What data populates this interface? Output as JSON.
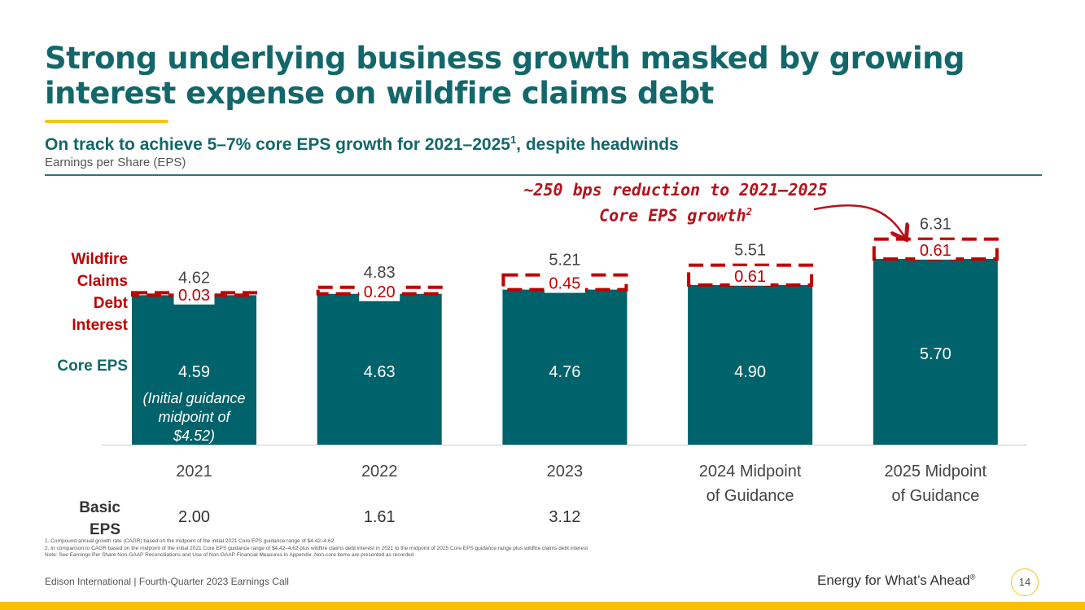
{
  "title": "Strong underlying business growth masked by growing interest expense on wildfire claims debt",
  "subtitle": "On track to achieve 5–7% core EPS growth for 2021–2025",
  "subtitle_sup": "1",
  "subtitle_tail": ", despite headwinds",
  "section_label": "Earnings per Share (EPS)",
  "row_labels": {
    "wildfire": "Wildfire Claims Debt Interest",
    "core": "Core EPS",
    "basic": "Basic EPS"
  },
  "annotation": {
    "text": "~250 bps reduction to 2021–2025 Core EPS growth",
    "sup": "2"
  },
  "chart_data": {
    "type": "bar",
    "stacked": true,
    "categories": [
      "2021",
      "2022",
      "2023",
      "2024 Midpoint of Guidance",
      "2025 Midpoint of Guidance"
    ],
    "series": [
      {
        "name": "Core EPS",
        "values": [
          4.59,
          4.63,
          4.76,
          4.9,
          5.7
        ],
        "labels": [
          "4.59",
          "4.63",
          "4.76",
          "4.90",
          "5.70"
        ],
        "color": "#00626a"
      },
      {
        "name": "Wildfire Claims Debt Interest",
        "values": [
          0.03,
          0.2,
          0.45,
          0.61,
          0.61
        ],
        "labels": [
          "0.03",
          "0.20",
          "0.45",
          "0.61",
          "0.61"
        ],
        "color": "#c00000",
        "style": "dashed-outline"
      }
    ],
    "totals": [
      "4.62",
      "4.83",
      "5.21",
      "5.51",
      "6.31"
    ],
    "basic_eps": [
      "2.00",
      "1.61",
      "3.12",
      "",
      ""
    ],
    "note_2021": "(Initial guidance midpoint of $4.52)",
    "ylim": [
      0,
      6.5
    ],
    "grid": false
  },
  "footnotes": [
    "1.  Compound annual growth rate (CAGR) based on the midpoint of the initial 2021 Core EPS guidance range of $4.42–4.62",
    "2.  In comparison to CAGR based on the midpoint of the initial 2021 Core EPS guidance range of $4.42–4.62 plus wildfire claims debt interest in 2021 to the midpoint of 2025 Core EPS guidance range plus wildfire claims debt interest",
    "Note: See Earnings Per Share Non-GAAP Reconciliations and Use of Non-GAAP Financial Measures in Appendix. Non-core items are presented as recorded"
  ],
  "footer": "Edison International |  Fourth-Quarter 2023 Earnings Call",
  "tagline": "Energy for What’s Ahead",
  "tagline_mark": "®",
  "page_number": "14"
}
